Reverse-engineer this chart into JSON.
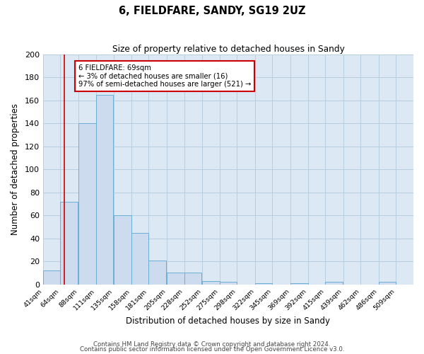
{
  "title": "6, FIELDFARE, SANDY, SG19 2UZ",
  "subtitle": "Size of property relative to detached houses in Sandy",
  "xlabel": "Distribution of detached houses by size in Sandy",
  "ylabel": "Number of detached properties",
  "bin_labels": [
    "41sqm",
    "64sqm",
    "88sqm",
    "111sqm",
    "135sqm",
    "158sqm",
    "181sqm",
    "205sqm",
    "228sqm",
    "252sqm",
    "275sqm",
    "298sqm",
    "322sqm",
    "345sqm",
    "369sqm",
    "392sqm",
    "415sqm",
    "439sqm",
    "462sqm",
    "486sqm",
    "509sqm"
  ],
  "bin_edges": [
    41,
    64,
    88,
    111,
    135,
    158,
    181,
    205,
    228,
    252,
    275,
    298,
    322,
    345,
    369,
    392,
    415,
    439,
    462,
    486,
    509
  ],
  "bar_values": [
    12,
    72,
    140,
    165,
    60,
    45,
    21,
    10,
    10,
    3,
    2,
    0,
    1,
    0,
    1,
    0,
    2,
    0,
    0,
    2
  ],
  "bar_color": "#ccdcee",
  "bar_edge_color": "#6baed6",
  "ylim": [
    0,
    200
  ],
  "yticks": [
    0,
    20,
    40,
    60,
    80,
    100,
    120,
    140,
    160,
    180,
    200
  ],
  "property_line_x": 69,
  "property_line_color": "#cc0000",
  "annotation_line1": "6 FIELDFARE: 69sqm",
  "annotation_line2": "← 3% of detached houses are smaller (16)",
  "annotation_line3": "97% of semi-detached houses are larger (521) →",
  "grid_color": "#b8cfe0",
  "background_color": "#dce9f5",
  "footer_line1": "Contains HM Land Registry data © Crown copyright and database right 2024.",
  "footer_line2": "Contains public sector information licensed under the Open Government Licence v3.0."
}
